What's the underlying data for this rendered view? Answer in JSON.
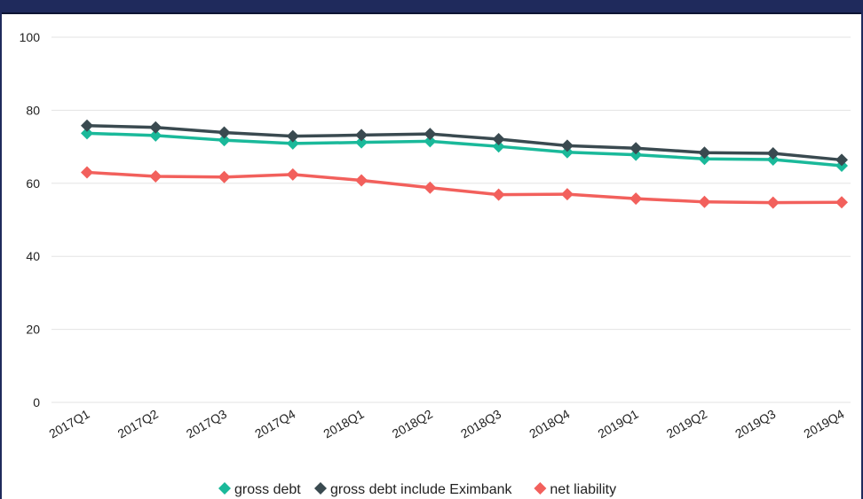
{
  "chart_data": {
    "type": "line",
    "title": "",
    "xlabel": "",
    "ylabel": "",
    "ylim": [
      0,
      100
    ],
    "yticks": [
      0,
      20,
      40,
      60,
      80,
      100
    ],
    "grid": true,
    "legend_position": "bottom",
    "categories": [
      "2017Q1",
      "2017Q2",
      "2017Q3",
      "2017Q4",
      "2018Q1",
      "2018Q2",
      "2018Q3",
      "2018Q4",
      "2019Q1",
      "2019Q2",
      "2019Q3",
      "2019Q4"
    ],
    "series": [
      {
        "name": "gross debt",
        "color": "#1ab99a",
        "marker": "diamond",
        "values": [
          73.7,
          73.1,
          71.8,
          70.9,
          71.2,
          71.5,
          70.1,
          68.5,
          67.8,
          66.7,
          66.5,
          64.8
        ]
      },
      {
        "name": "gross debt include Eximbank",
        "color": "#3a4a50",
        "marker": "diamond",
        "values": [
          75.8,
          75.3,
          73.9,
          72.9,
          73.2,
          73.5,
          72.1,
          70.3,
          69.6,
          68.4,
          68.2,
          66.4
        ]
      },
      {
        "name": "net liability",
        "color": "#f2605c",
        "marker": "diamond",
        "values": [
          63.0,
          61.9,
          61.7,
          62.4,
          60.8,
          58.8,
          56.9,
          57.0,
          55.8,
          54.9,
          54.7,
          54.8
        ]
      }
    ]
  }
}
